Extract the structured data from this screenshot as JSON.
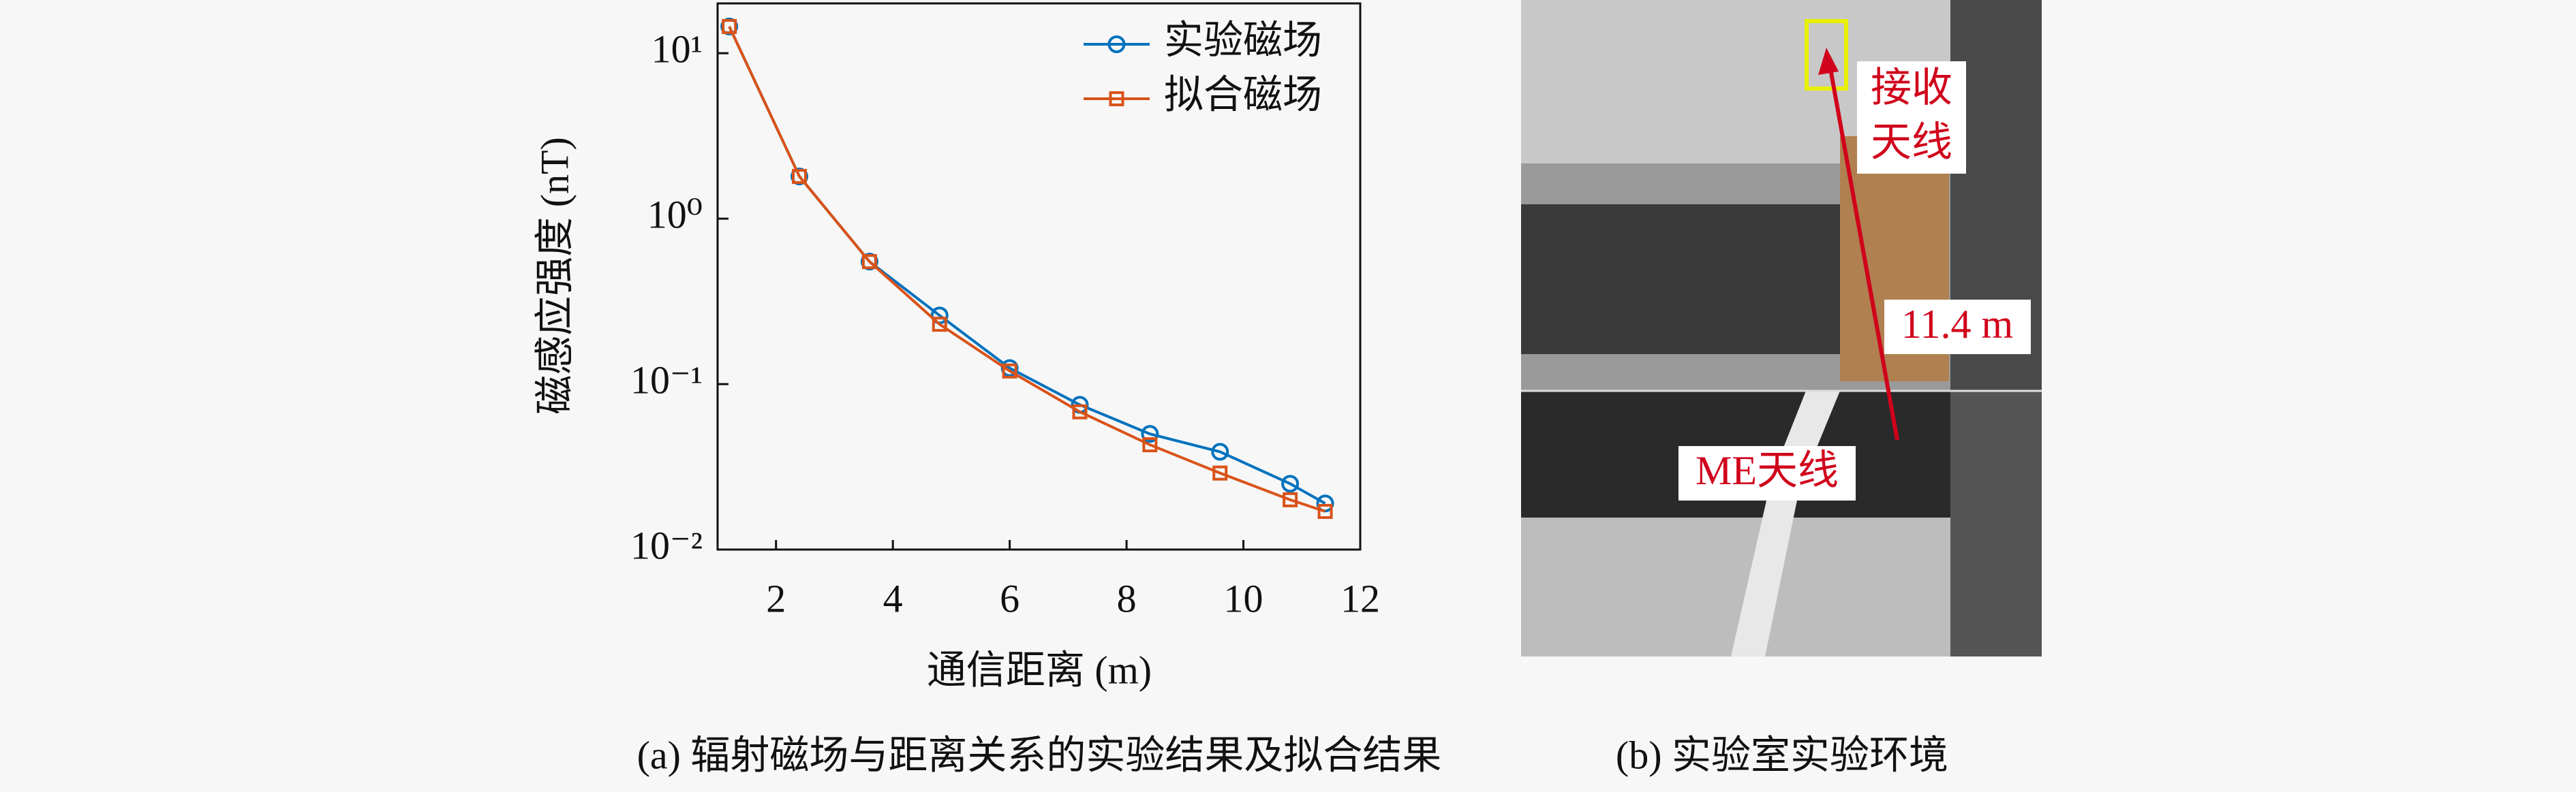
{
  "chart_data": {
    "type": "line",
    "x_label": "通信距离 (m)",
    "y_label": "磁感应强度 (nT)",
    "x": [
      1.2,
      2.4,
      3.6,
      4.8,
      6.0,
      7.2,
      8.4,
      9.6,
      10.8,
      11.4
    ],
    "series": [
      {
        "name": "实验磁场",
        "color": "#0072bd",
        "marker": "circle",
        "values": [
          14.5,
          1.8,
          0.55,
          0.26,
          0.125,
          0.075,
          0.05,
          0.039,
          0.025,
          0.019
        ]
      },
      {
        "name": "拟合磁场",
        "color": "#d95319",
        "marker": "square",
        "values": [
          14.5,
          1.8,
          0.55,
          0.23,
          0.12,
          0.068,
          0.043,
          0.029,
          0.02,
          0.017
        ]
      }
    ],
    "xlim": [
      1,
      12
    ],
    "xticks": [
      2,
      4,
      6,
      8,
      10,
      12
    ],
    "ylim": [
      0.01,
      20
    ],
    "y_scale": "log",
    "yticks": [
      {
        "value": 0.01,
        "label": "10⁻²"
      },
      {
        "value": 0.1,
        "label": "10⁻¹"
      },
      {
        "value": 1,
        "label": "10⁰"
      },
      {
        "value": 10,
        "label": "10¹"
      }
    ],
    "legend": "upper right"
  },
  "photo": {
    "receive_label": [
      "接收",
      "天线"
    ],
    "distance_label": "11.4 m",
    "me_label": "ME天线"
  },
  "captions": {
    "a": "(a) 辐射磁场与距离关系的实验结果及拟合结果",
    "b": "(b) 实验室实验环境"
  }
}
